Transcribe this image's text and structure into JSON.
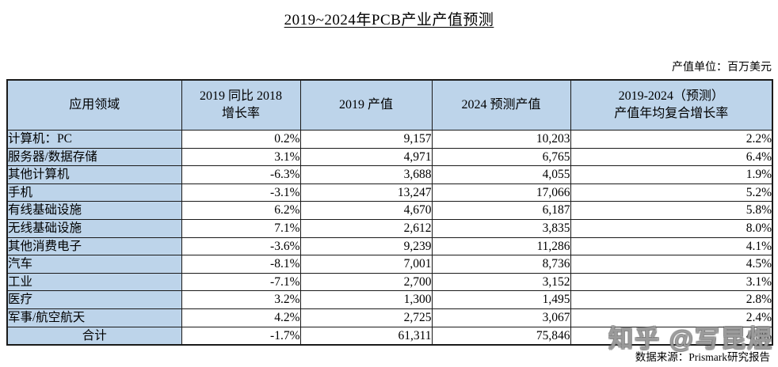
{
  "page": {
    "title": "2019~2024年PCB产业产值预测",
    "unit_note": "产值单位：百万美元",
    "source_note": "数据来源：Prismark研究报告",
    "watermark": "知乎 @写昆煜"
  },
  "colors": {
    "header_bg": "#BDD4EA",
    "label_bg": "#BDD4EA",
    "border": "#1A1A1A"
  },
  "table": {
    "headers": [
      "应用领域",
      "2019 同比 2018\n增长率",
      "2019 产值",
      "2024 预测产值",
      "2019-2024（预测）\n产值年均复合增长率"
    ],
    "columns": [
      "label",
      "growth",
      "v2019",
      "v2024",
      "cagr"
    ],
    "rows": [
      {
        "label": "计算机：PC",
        "growth": "0.2%",
        "v2019": "9,157",
        "v2024": "10,203",
        "cagr": "2.2%",
        "bold": false,
        "total": false
      },
      {
        "label": "服务器/数据存储",
        "growth": "3.1%",
        "v2019": "4,971",
        "v2024": "6,765",
        "cagr": "6.4%",
        "bold": true,
        "total": false
      },
      {
        "label": "其他计算机",
        "growth": "-6.3%",
        "v2019": "3,688",
        "v2024": "4,055",
        "cagr": "1.9%",
        "bold": false,
        "total": false
      },
      {
        "label": "手机",
        "growth": "-3.1%",
        "v2019": "13,247",
        "v2024": "17,066",
        "cagr": "5.2%",
        "bold": false,
        "total": false
      },
      {
        "label": "有线基础设施",
        "growth": "6.2%",
        "v2019": "4,670",
        "v2024": "6,187",
        "cagr": "5.8%",
        "bold": true,
        "total": false
      },
      {
        "label": "无线基础设施",
        "growth": "7.1%",
        "v2019": "2,612",
        "v2024": "3,835",
        "cagr": "8.0%",
        "bold": true,
        "total": false
      },
      {
        "label": "其他消费电子",
        "growth": "-3.6%",
        "v2019": "9,239",
        "v2024": "11,286",
        "cagr": "4.1%",
        "bold": false,
        "total": false
      },
      {
        "label": "汽车",
        "growth": "-8.1%",
        "v2019": "7,001",
        "v2024": "8,736",
        "cagr": "4.5%",
        "bold": true,
        "total": false
      },
      {
        "label": "工业",
        "growth": "-7.1%",
        "v2019": "2,700",
        "v2024": "3,152",
        "cagr": "3.1%",
        "bold": false,
        "total": false
      },
      {
        "label": "医疗",
        "growth": "3.2%",
        "v2019": "1,300",
        "v2024": "1,495",
        "cagr": "2.8%",
        "bold": false,
        "total": false
      },
      {
        "label": "军事/航空航天",
        "growth": "4.2%",
        "v2019": "2,725",
        "v2024": "3,067",
        "cagr": "2.4%",
        "bold": false,
        "total": false
      },
      {
        "label": "合计",
        "growth": "-1.7%",
        "v2019": "61,311",
        "v2024": "75,846",
        "cagr": "4.3%",
        "bold": false,
        "total": true
      }
    ]
  }
}
